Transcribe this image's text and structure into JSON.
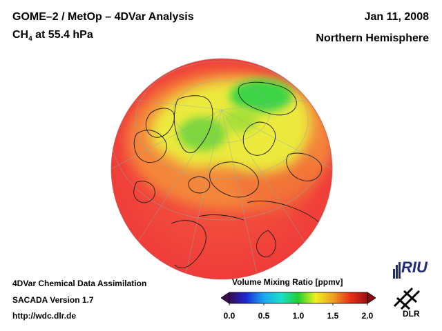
{
  "header": {
    "title": "GOME–2 / MetOp – 4DVar Analysis",
    "species_main": "CH",
    "species_sub": "4",
    "level": " at 55.4 hPa",
    "date": "Jan 11, 2008",
    "hemisphere": "Northern Hemisphere"
  },
  "footer": {
    "line1": "4DVar Chemical Data Assimilation",
    "line2": "SACADA Version 1.7",
    "line3": "http://wdc.dlr.de"
  },
  "colorbar": {
    "title": "Volume Mixing Ratio [ppmv]",
    "ticks": [
      "0.0",
      "0.5",
      "1.0",
      "1.5",
      "2.0"
    ],
    "min": 0.0,
    "max": 2.0,
    "colors": [
      "#3a0a55",
      "#1a2bd8",
      "#1aa8f0",
      "#18e0c8",
      "#22d030",
      "#f0f020",
      "#f0a020",
      "#e83018",
      "#a01010"
    ]
  },
  "logos": {
    "riu": "RIU",
    "dlr": "DLR"
  },
  "map": {
    "projection": "orthographic",
    "field_colors": {
      "low": "#3ad640",
      "mid": "#e8ee3a",
      "high": "#f07a30",
      "background": "#f03a3a"
    }
  }
}
